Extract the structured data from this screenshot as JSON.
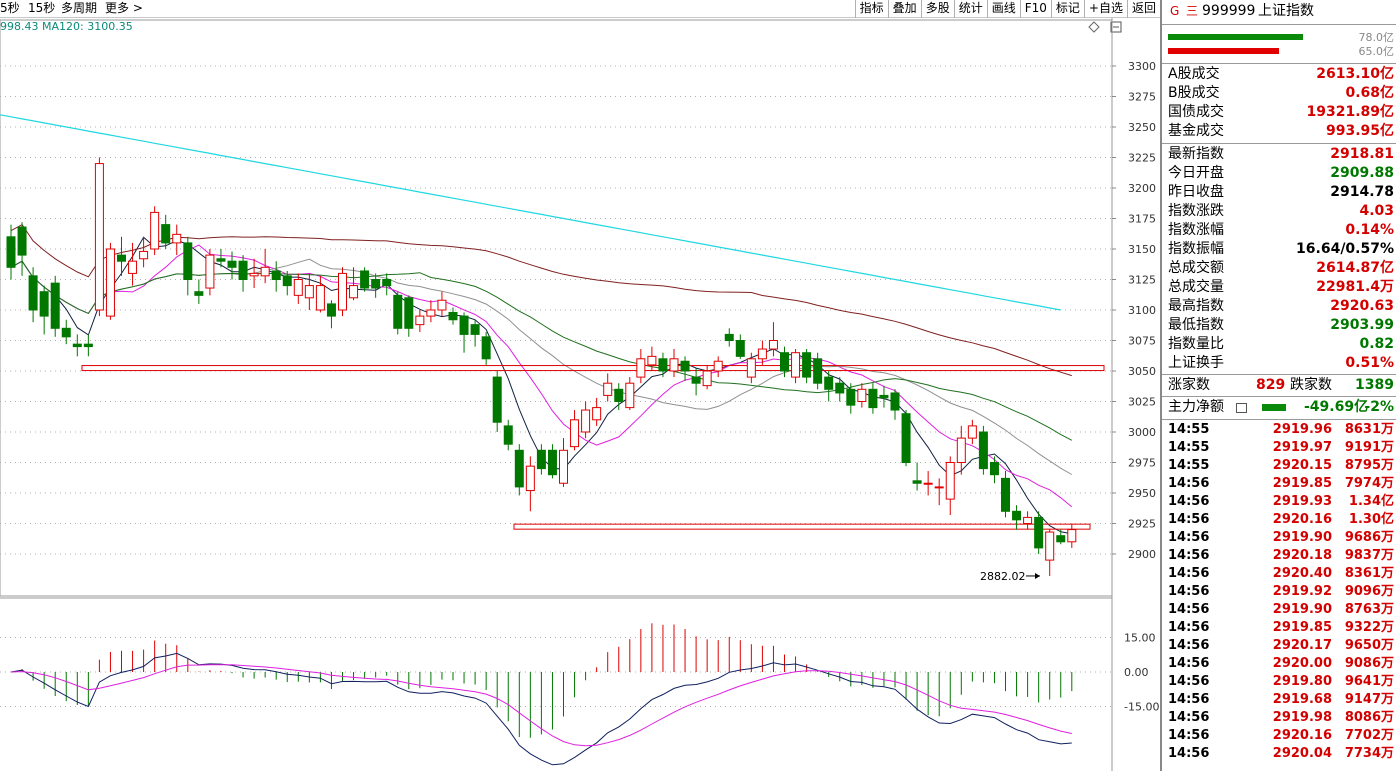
{
  "topbar": {
    "items": [
      "5秒",
      "15秒",
      "多周期",
      "更多 >"
    ]
  },
  "toolbar": {
    "items": [
      "指标",
      "叠加",
      "多股",
      "统计",
      "画线",
      "F10",
      "标记",
      "+自选",
      "返回"
    ]
  },
  "ma_legend": "998.43  MA120: 3100.35",
  "header": {
    "g_icon": "G",
    "menu_icon": "三",
    "code": "999999",
    "name": "上证指数"
  },
  "volume_bars": {
    "top_value": "78.0亿",
    "bottom_value": "65.0亿",
    "top_fraction": 0.9,
    "bottom_fraction": 0.74
  },
  "turnover": [
    {
      "label": "A股成交",
      "value": "2613.10亿"
    },
    {
      "label": "B股成交",
      "value": "0.68亿"
    },
    {
      "label": "国债成交",
      "value": "19321.89亿"
    },
    {
      "label": "基金成交",
      "value": "993.95亿"
    }
  ],
  "quote": [
    {
      "label": "最新指数",
      "value": "2918.81",
      "color": "red"
    },
    {
      "label": "今日开盘",
      "value": "2909.88",
      "color": "grn"
    },
    {
      "label": "昨日收盘",
      "value": "2914.78",
      "color": "blk"
    },
    {
      "label": "指数涨跌",
      "value": "4.03",
      "color": "red"
    },
    {
      "label": "指数涨幅",
      "value": "0.14%",
      "color": "red"
    },
    {
      "label": "指数振幅",
      "value": "16.64/0.57%",
      "color": "blk"
    },
    {
      "label": "总成交额",
      "value": "2614.87亿",
      "color": "red"
    },
    {
      "label": "总成交量",
      "value": "22981.4万",
      "color": "red"
    },
    {
      "label": "最高指数",
      "value": "2920.63",
      "color": "red"
    },
    {
      "label": "最低指数",
      "value": "2903.99",
      "color": "grn"
    },
    {
      "label": "指数量比",
      "value": "0.82",
      "color": "grn"
    },
    {
      "label": "上证换手",
      "value": "0.51%",
      "color": "red"
    }
  ],
  "breadth": {
    "up_label": "涨家数",
    "up": "829",
    "down_label": "跌家数",
    "down": "1389"
  },
  "main_force": {
    "label": "主力净额",
    "value": "-49.69亿",
    "pct": "-2%"
  },
  "ticks": [
    {
      "time": "14:55",
      "price": "2919.96",
      "vol": "8631万"
    },
    {
      "time": "14:55",
      "price": "2919.97",
      "vol": "9191万"
    },
    {
      "time": "14:55",
      "price": "2920.15",
      "vol": "8795万"
    },
    {
      "time": "14:56",
      "price": "2919.85",
      "vol": "7974万"
    },
    {
      "time": "14:56",
      "price": "2919.93",
      "vol": "1.34亿"
    },
    {
      "time": "14:56",
      "price": "2920.16",
      "vol": "1.30亿"
    },
    {
      "time": "14:56",
      "price": "2919.90",
      "vol": "9686万"
    },
    {
      "time": "14:56",
      "price": "2920.18",
      "vol": "9837万"
    },
    {
      "time": "14:56",
      "price": "2920.40",
      "vol": "8361万"
    },
    {
      "time": "14:56",
      "price": "2919.92",
      "vol": "9096万"
    },
    {
      "time": "14:56",
      "price": "2919.90",
      "vol": "8763万"
    },
    {
      "time": "14:56",
      "price": "2919.85",
      "vol": "9322万"
    },
    {
      "time": "14:56",
      "price": "2920.17",
      "vol": "9650万"
    },
    {
      "time": "14:56",
      "price": "2920.00",
      "vol": "9086万"
    },
    {
      "time": "14:56",
      "price": "2919.80",
      "vol": "9641万"
    },
    {
      "time": "14:56",
      "price": "2919.68",
      "vol": "9147万"
    },
    {
      "time": "14:56",
      "price": "2919.98",
      "vol": "8086万"
    },
    {
      "time": "14:56",
      "price": "2920.16",
      "vol": "7702万"
    },
    {
      "time": "14:56",
      "price": "2920.04",
      "vol": "7734万"
    }
  ],
  "chart_data": {
    "type": "candlestick",
    "y_ticks": [
      3300,
      3275,
      3250,
      3225,
      3200,
      3175,
      3150,
      3125,
      3100,
      3075,
      3050,
      3025,
      3000,
      2975,
      2950,
      2925,
      2900
    ],
    "ylim": [
      2870,
      3320
    ],
    "annotation": "2882.02",
    "support_levels": [
      3052,
      2922
    ],
    "candles": [
      [
        3160,
        3135,
        3170,
        3125
      ],
      [
        3168,
        3145,
        3172,
        3128
      ],
      [
        3128,
        3100,
        3135,
        3090
      ],
      [
        3115,
        3095,
        3120,
        3080
      ],
      [
        3122,
        3085,
        3128,
        3078
      ],
      [
        3085,
        3078,
        3092,
        3072
      ],
      [
        3072,
        3070,
        3080,
        3062
      ],
      [
        3072,
        3070,
        3080,
        3062
      ],
      [
        3100,
        3220,
        3225,
        3095
      ],
      [
        3095,
        3150,
        3155,
        3092
      ],
      [
        3145,
        3140,
        3160,
        3128
      ],
      [
        3130,
        3140,
        3155,
        3120
      ],
      [
        3142,
        3148,
        3160,
        3135
      ],
      [
        3150,
        3180,
        3185,
        3145
      ],
      [
        3170,
        3155,
        3178,
        3150
      ],
      [
        3155,
        3162,
        3170,
        3145
      ],
      [
        3155,
        3125,
        3160,
        3112
      ],
      [
        3115,
        3112,
        3125,
        3105
      ],
      [
        3118,
        3145,
        3150,
        3112
      ],
      [
        3142,
        3140,
        3150,
        3135
      ],
      [
        3140,
        3135,
        3148,
        3125
      ],
      [
        3140,
        3125,
        3145,
        3115
      ],
      [
        3128,
        3130,
        3142,
        3118
      ],
      [
        3128,
        3135,
        3150,
        3122
      ],
      [
        3132,
        3125,
        3140,
        3115
      ],
      [
        3128,
        3120,
        3132,
        3112
      ],
      [
        3112,
        3125,
        3130,
        3105
      ],
      [
        3110,
        3120,
        3130,
        3100
      ],
      [
        3100,
        3120,
        3128,
        3098
      ],
      [
        3105,
        3095,
        3108,
        3085
      ],
      [
        3100,
        3130,
        3135,
        3095
      ],
      [
        3110,
        3120,
        3135,
        3108
      ],
      [
        3132,
        3118,
        3135,
        3115
      ],
      [
        3125,
        3118,
        3130,
        3110
      ],
      [
        3125,
        3120,
        3130,
        3112
      ],
      [
        3112,
        3085,
        3115,
        3080
      ],
      [
        3110,
        3085,
        3112,
        3078
      ],
      [
        3088,
        3095,
        3100,
        3082
      ],
      [
        3095,
        3100,
        3108,
        3090
      ],
      [
        3100,
        3108,
        3115,
        3095
      ],
      [
        3098,
        3092,
        3102,
        3088
      ],
      [
        3095,
        3080,
        3098,
        3065
      ],
      [
        3088,
        3080,
        3092,
        3070
      ],
      [
        3078,
        3060,
        3082,
        3055
      ],
      [
        3045,
        3008,
        3050,
        3000
      ],
      [
        3005,
        2990,
        3010,
        2985
      ],
      [
        2985,
        2955,
        2990,
        2948
      ],
      [
        2952,
        2972,
        2980,
        2935
      ],
      [
        2985,
        2970,
        2990,
        2965
      ],
      [
        2985,
        2965,
        2990,
        2962
      ],
      [
        2958,
        2985,
        2995,
        2955
      ],
      [
        2988,
        3010,
        3018,
        2985
      ],
      [
        3000,
        3018,
        3025,
        2995
      ],
      [
        3010,
        3020,
        3028,
        3005
      ],
      [
        3030,
        3040,
        3048,
        3025
      ],
      [
        3035,
        3025,
        3040,
        3018
      ],
      [
        3020,
        3040,
        3045,
        3018
      ],
      [
        3045,
        3060,
        3068,
        3040
      ],
      [
        3055,
        3062,
        3070,
        3050
      ],
      [
        3060,
        3050,
        3065,
        3045
      ],
      [
        3050,
        3060,
        3068,
        3045
      ],
      [
        3058,
        3050,
        3062,
        3042
      ],
      [
        3045,
        3040,
        3052,
        3030
      ],
      [
        3038,
        3050,
        3055,
        3035
      ],
      [
        3050,
        3058,
        3062,
        3045
      ],
      [
        3080,
        3075,
        3085,
        3070
      ],
      [
        3075,
        3062,
        3080,
        3060
      ],
      [
        3045,
        3060,
        3065,
        3040
      ],
      [
        3060,
        3068,
        3075,
        3055
      ],
      [
        3068,
        3075,
        3090,
        3062
      ],
      [
        3065,
        3050,
        3070,
        3045
      ],
      [
        3045,
        3065,
        3068,
        3040
      ],
      [
        3065,
        3045,
        3068,
        3040
      ],
      [
        3060,
        3040,
        3065,
        3035
      ],
      [
        3045,
        3035,
        3050,
        3025
      ],
      [
        3040,
        3032,
        3045,
        3025
      ],
      [
        3035,
        3022,
        3040,
        3015
      ],
      [
        3025,
        3035,
        3040,
        3020
      ],
      [
        3035,
        3020,
        3040,
        3015
      ],
      [
        3030,
        3028,
        3038,
        3020
      ],
      [
        3032,
        3018,
        3035,
        3010
      ],
      [
        3015,
        2975,
        3018,
        2972
      ],
      [
        2960,
        2958,
        2975,
        2952
      ],
      [
        2958,
        2958,
        2968,
        2948
      ],
      [
        2955,
        2955,
        2962,
        2940
      ],
      [
        2945,
        2975,
        2980,
        2932
      ],
      [
        2975,
        2995,
        3005,
        2965
      ],
      [
        2995,
        3005,
        3010,
        2990
      ],
      [
        3000,
        2970,
        3005,
        2965
      ],
      [
        2975,
        2965,
        2980,
        2958
      ],
      [
        2962,
        2935,
        2968,
        2930
      ],
      [
        2935,
        2928,
        2940,
        2920
      ],
      [
        2925,
        2930,
        2935,
        2920
      ],
      [
        2930,
        2905,
        2935,
        2900
      ],
      [
        2895,
        2918,
        2920,
        2882
      ],
      [
        2915,
        2910,
        2920,
        2908
      ],
      [
        2910,
        2920,
        2925,
        2905
      ]
    ],
    "macd_ticks": [
      "15.00",
      "0.00",
      "-15.00"
    ]
  }
}
